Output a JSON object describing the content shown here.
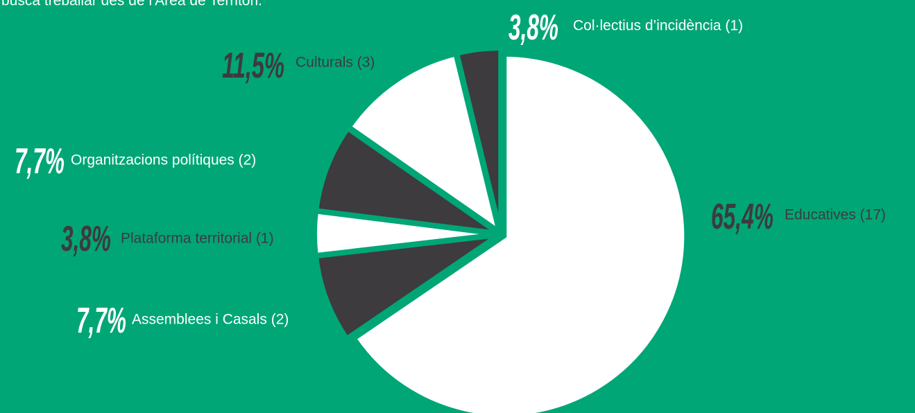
{
  "chart_data": {
    "type": "pie",
    "subtitle": "busca treballar des de l'Àrea de Territori.",
    "categories": [
      "Educatives (17)",
      "Assemblees i Casals (2)",
      "Plataforma territorial (1)",
      "Organitzacions polítiques (2)",
      "Culturals (3)",
      "Col·lectius d’incidència (1)"
    ],
    "values": [
      65.4,
      7.7,
      3.8,
      7.7,
      11.5,
      3.8
    ],
    "value_labels": [
      "65,4%",
      "7,7%",
      "3,8%",
      "7,7%",
      "11,5%",
      "3,8%"
    ],
    "colors": [
      "#ffffff",
      "#3d3b3d",
      "#ffffff",
      "#3d3b3d",
      "#ffffff",
      "#3d3b3d"
    ]
  }
}
